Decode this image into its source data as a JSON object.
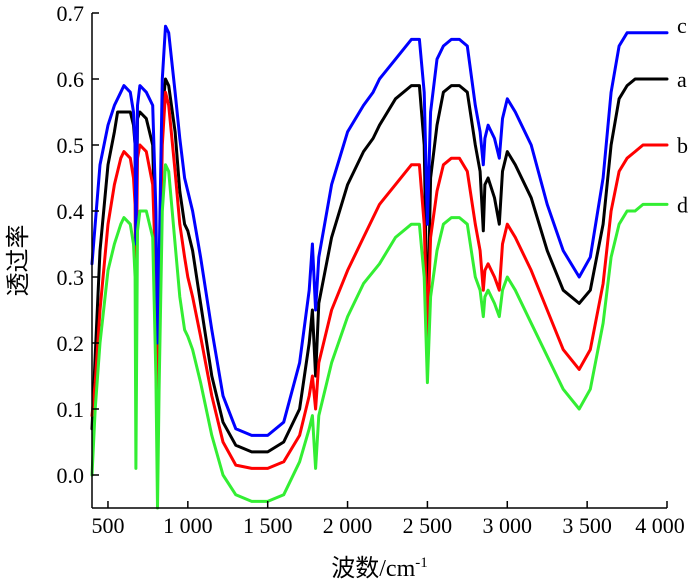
{
  "chart_data": {
    "type": "line",
    "xlabel": "波数/cm",
    "xlabel_sup": "-1",
    "ylabel": "透过率",
    "xlim": [
      400,
      4000
    ],
    "ylim": [
      -0.05,
      0.7
    ],
    "x_ticks": [
      500,
      1000,
      1500,
      2000,
      2500,
      3000,
      3500,
      4000
    ],
    "x_tick_labels": [
      "500",
      "1 000",
      "1 500",
      "2 000",
      "2 500",
      "3 000",
      "3 500",
      "4 000"
    ],
    "y_ticks": [
      0.0,
      0.1,
      0.2,
      0.3,
      0.4,
      0.5,
      0.6,
      0.7
    ],
    "y_tick_labels": [
      "0.0",
      "0.1",
      "0.2",
      "0.3",
      "0.4",
      "0.5",
      "0.6",
      "0.7"
    ],
    "grid": false,
    "legend": "inline labels at right end of each curve",
    "series": [
      {
        "name": "a",
        "color": "#000000",
        "points": [
          [
            400,
            0.07
          ],
          [
            420,
            0.18
          ],
          [
            450,
            0.34
          ],
          [
            500,
            0.47
          ],
          [
            540,
            0.52
          ],
          [
            560,
            0.55
          ],
          [
            600,
            0.55
          ],
          [
            640,
            0.55
          ],
          [
            660,
            0.53
          ],
          [
            670,
            0.5
          ],
          [
            675,
            0.3
          ],
          [
            685,
            0.54
          ],
          [
            700,
            0.55
          ],
          [
            740,
            0.54
          ],
          [
            780,
            0.5
          ],
          [
            800,
            0.3
          ],
          [
            810,
            0.07
          ],
          [
            820,
            0.28
          ],
          [
            840,
            0.55
          ],
          [
            860,
            0.6
          ],
          [
            880,
            0.59
          ],
          [
            920,
            0.52
          ],
          [
            950,
            0.43
          ],
          [
            980,
            0.38
          ],
          [
            1000,
            0.37
          ],
          [
            1030,
            0.34
          ],
          [
            1080,
            0.26
          ],
          [
            1150,
            0.15
          ],
          [
            1220,
            0.08
          ],
          [
            1300,
            0.045
          ],
          [
            1400,
            0.035
          ],
          [
            1500,
            0.035
          ],
          [
            1600,
            0.05
          ],
          [
            1700,
            0.1
          ],
          [
            1760,
            0.2
          ],
          [
            1780,
            0.25
          ],
          [
            1800,
            0.15
          ],
          [
            1820,
            0.26
          ],
          [
            1900,
            0.36
          ],
          [
            2000,
            0.44
          ],
          [
            2100,
            0.49
          ],
          [
            2160,
            0.51
          ],
          [
            2200,
            0.53
          ],
          [
            2300,
            0.57
          ],
          [
            2400,
            0.59
          ],
          [
            2450,
            0.59
          ],
          [
            2480,
            0.5
          ],
          [
            2500,
            0.21
          ],
          [
            2520,
            0.45
          ],
          [
            2560,
            0.53
          ],
          [
            2600,
            0.58
          ],
          [
            2650,
            0.59
          ],
          [
            2700,
            0.59
          ],
          [
            2750,
            0.58
          ],
          [
            2800,
            0.5
          ],
          [
            2830,
            0.46
          ],
          [
            2850,
            0.37
          ],
          [
            2860,
            0.44
          ],
          [
            2880,
            0.45
          ],
          [
            2920,
            0.42
          ],
          [
            2950,
            0.38
          ],
          [
            2970,
            0.46
          ],
          [
            3000,
            0.49
          ],
          [
            3050,
            0.47
          ],
          [
            3150,
            0.42
          ],
          [
            3250,
            0.34
          ],
          [
            3350,
            0.28
          ],
          [
            3450,
            0.26
          ],
          [
            3520,
            0.28
          ],
          [
            3600,
            0.38
          ],
          [
            3650,
            0.5
          ],
          [
            3700,
            0.57
          ],
          [
            3750,
            0.59
          ],
          [
            3800,
            0.6
          ],
          [
            3850,
            0.6
          ],
          [
            3900,
            0.6
          ],
          [
            3950,
            0.6
          ],
          [
            4000,
            0.6
          ]
        ]
      },
      {
        "name": "b",
        "color": "#ff0000",
        "points": [
          [
            400,
            0.09
          ],
          [
            420,
            0.14
          ],
          [
            450,
            0.25
          ],
          [
            500,
            0.38
          ],
          [
            540,
            0.44
          ],
          [
            580,
            0.48
          ],
          [
            600,
            0.49
          ],
          [
            640,
            0.48
          ],
          [
            660,
            0.45
          ],
          [
            670,
            0.41
          ],
          [
            675,
            0.25
          ],
          [
            685,
            0.48
          ],
          [
            700,
            0.5
          ],
          [
            740,
            0.49
          ],
          [
            780,
            0.44
          ],
          [
            800,
            0.3
          ],
          [
            810,
            0.07
          ],
          [
            820,
            0.24
          ],
          [
            840,
            0.5
          ],
          [
            860,
            0.58
          ],
          [
            880,
            0.56
          ],
          [
            920,
            0.46
          ],
          [
            950,
            0.38
          ],
          [
            980,
            0.33
          ],
          [
            1000,
            0.3
          ],
          [
            1030,
            0.27
          ],
          [
            1080,
            0.21
          ],
          [
            1150,
            0.12
          ],
          [
            1220,
            0.05
          ],
          [
            1300,
            0.015
          ],
          [
            1400,
            0.01
          ],
          [
            1500,
            0.01
          ],
          [
            1600,
            0.02
          ],
          [
            1700,
            0.06
          ],
          [
            1760,
            0.12
          ],
          [
            1780,
            0.15
          ],
          [
            1800,
            0.1
          ],
          [
            1820,
            0.17
          ],
          [
            1900,
            0.25
          ],
          [
            2000,
            0.31
          ],
          [
            2100,
            0.36
          ],
          [
            2200,
            0.41
          ],
          [
            2300,
            0.44
          ],
          [
            2400,
            0.47
          ],
          [
            2450,
            0.47
          ],
          [
            2480,
            0.38
          ],
          [
            2500,
            0.21
          ],
          [
            2520,
            0.36
          ],
          [
            2560,
            0.43
          ],
          [
            2600,
            0.47
          ],
          [
            2650,
            0.48
          ],
          [
            2700,
            0.48
          ],
          [
            2750,
            0.46
          ],
          [
            2800,
            0.38
          ],
          [
            2830,
            0.34
          ],
          [
            2850,
            0.28
          ],
          [
            2860,
            0.31
          ],
          [
            2880,
            0.32
          ],
          [
            2920,
            0.3
          ],
          [
            2950,
            0.28
          ],
          [
            2970,
            0.35
          ],
          [
            3000,
            0.38
          ],
          [
            3050,
            0.36
          ],
          [
            3150,
            0.31
          ],
          [
            3250,
            0.25
          ],
          [
            3350,
            0.19
          ],
          [
            3450,
            0.16
          ],
          [
            3520,
            0.19
          ],
          [
            3600,
            0.29
          ],
          [
            3650,
            0.4
          ],
          [
            3700,
            0.46
          ],
          [
            3750,
            0.48
          ],
          [
            3800,
            0.49
          ],
          [
            3850,
            0.5
          ],
          [
            3900,
            0.5
          ],
          [
            3950,
            0.5
          ],
          [
            4000,
            0.5
          ]
        ]
      },
      {
        "name": "c",
        "color": "#0000ff",
        "points": [
          [
            400,
            0.32
          ],
          [
            420,
            0.38
          ],
          [
            450,
            0.47
          ],
          [
            500,
            0.53
          ],
          [
            540,
            0.56
          ],
          [
            580,
            0.58
          ],
          [
            600,
            0.59
          ],
          [
            640,
            0.58
          ],
          [
            660,
            0.55
          ],
          [
            670,
            0.5
          ],
          [
            675,
            0.35
          ],
          [
            685,
            0.56
          ],
          [
            700,
            0.59
          ],
          [
            740,
            0.58
          ],
          [
            780,
            0.56
          ],
          [
            800,
            0.4
          ],
          [
            810,
            0.2
          ],
          [
            820,
            0.32
          ],
          [
            840,
            0.6
          ],
          [
            860,
            0.68
          ],
          [
            880,
            0.67
          ],
          [
            920,
            0.58
          ],
          [
            950,
            0.51
          ],
          [
            980,
            0.45
          ],
          [
            1000,
            0.43
          ],
          [
            1030,
            0.4
          ],
          [
            1080,
            0.33
          ],
          [
            1150,
            0.22
          ],
          [
            1220,
            0.12
          ],
          [
            1300,
            0.07
          ],
          [
            1400,
            0.06
          ],
          [
            1500,
            0.06
          ],
          [
            1600,
            0.08
          ],
          [
            1700,
            0.17
          ],
          [
            1760,
            0.28
          ],
          [
            1780,
            0.35
          ],
          [
            1800,
            0.25
          ],
          [
            1820,
            0.33
          ],
          [
            1900,
            0.44
          ],
          [
            2000,
            0.52
          ],
          [
            2100,
            0.56
          ],
          [
            2160,
            0.58
          ],
          [
            2200,
            0.6
          ],
          [
            2300,
            0.63
          ],
          [
            2400,
            0.66
          ],
          [
            2450,
            0.66
          ],
          [
            2480,
            0.58
          ],
          [
            2500,
            0.38
          ],
          [
            2520,
            0.55
          ],
          [
            2560,
            0.63
          ],
          [
            2600,
            0.65
          ],
          [
            2650,
            0.66
          ],
          [
            2700,
            0.66
          ],
          [
            2750,
            0.65
          ],
          [
            2800,
            0.56
          ],
          [
            2830,
            0.52
          ],
          [
            2850,
            0.47
          ],
          [
            2860,
            0.51
          ],
          [
            2880,
            0.53
          ],
          [
            2920,
            0.51
          ],
          [
            2950,
            0.48
          ],
          [
            2970,
            0.54
          ],
          [
            3000,
            0.57
          ],
          [
            3050,
            0.55
          ],
          [
            3150,
            0.5
          ],
          [
            3250,
            0.41
          ],
          [
            3350,
            0.34
          ],
          [
            3450,
            0.3
          ],
          [
            3520,
            0.33
          ],
          [
            3600,
            0.45
          ],
          [
            3650,
            0.58
          ],
          [
            3700,
            0.65
          ],
          [
            3750,
            0.67
          ],
          [
            3800,
            0.67
          ],
          [
            3850,
            0.67
          ],
          [
            3900,
            0.67
          ],
          [
            3950,
            0.67
          ],
          [
            4000,
            0.67
          ]
        ]
      },
      {
        "name": "d",
        "color": "#33ee33",
        "points": [
          [
            400,
            0.0
          ],
          [
            420,
            0.1
          ],
          [
            450,
            0.2
          ],
          [
            500,
            0.31
          ],
          [
            540,
            0.35
          ],
          [
            580,
            0.38
          ],
          [
            600,
            0.39
          ],
          [
            640,
            0.38
          ],
          [
            660,
            0.35
          ],
          [
            670,
            0.3
          ],
          [
            675,
            0.01
          ],
          [
            685,
            0.37
          ],
          [
            700,
            0.4
          ],
          [
            740,
            0.4
          ],
          [
            780,
            0.36
          ],
          [
            800,
            0.15
          ],
          [
            810,
            -0.05
          ],
          [
            820,
            0.13
          ],
          [
            840,
            0.4
          ],
          [
            860,
            0.47
          ],
          [
            880,
            0.46
          ],
          [
            920,
            0.35
          ],
          [
            950,
            0.27
          ],
          [
            980,
            0.22
          ],
          [
            1000,
            0.21
          ],
          [
            1030,
            0.19
          ],
          [
            1080,
            0.14
          ],
          [
            1150,
            0.06
          ],
          [
            1220,
            0.0
          ],
          [
            1300,
            -0.03
          ],
          [
            1400,
            -0.04
          ],
          [
            1500,
            -0.04
          ],
          [
            1600,
            -0.03
          ],
          [
            1700,
            0.02
          ],
          [
            1760,
            0.07
          ],
          [
            1780,
            0.09
          ],
          [
            1800,
            0.01
          ],
          [
            1820,
            0.09
          ],
          [
            1900,
            0.17
          ],
          [
            2000,
            0.24
          ],
          [
            2100,
            0.29
          ],
          [
            2200,
            0.32
          ],
          [
            2300,
            0.36
          ],
          [
            2400,
            0.38
          ],
          [
            2450,
            0.38
          ],
          [
            2480,
            0.3
          ],
          [
            2500,
            0.14
          ],
          [
            2520,
            0.27
          ],
          [
            2560,
            0.34
          ],
          [
            2600,
            0.38
          ],
          [
            2650,
            0.39
          ],
          [
            2700,
            0.39
          ],
          [
            2750,
            0.38
          ],
          [
            2800,
            0.3
          ],
          [
            2830,
            0.28
          ],
          [
            2850,
            0.24
          ],
          [
            2860,
            0.27
          ],
          [
            2880,
            0.28
          ],
          [
            2920,
            0.26
          ],
          [
            2950,
            0.24
          ],
          [
            2970,
            0.28
          ],
          [
            3000,
            0.3
          ],
          [
            3050,
            0.28
          ],
          [
            3150,
            0.23
          ],
          [
            3250,
            0.18
          ],
          [
            3350,
            0.13
          ],
          [
            3450,
            0.1
          ],
          [
            3520,
            0.13
          ],
          [
            3600,
            0.23
          ],
          [
            3650,
            0.33
          ],
          [
            3700,
            0.38
          ],
          [
            3750,
            0.4
          ],
          [
            3800,
            0.4
          ],
          [
            3850,
            0.41
          ],
          [
            3900,
            0.41
          ],
          [
            3950,
            0.41
          ],
          [
            4000,
            0.41
          ]
        ]
      }
    ]
  }
}
